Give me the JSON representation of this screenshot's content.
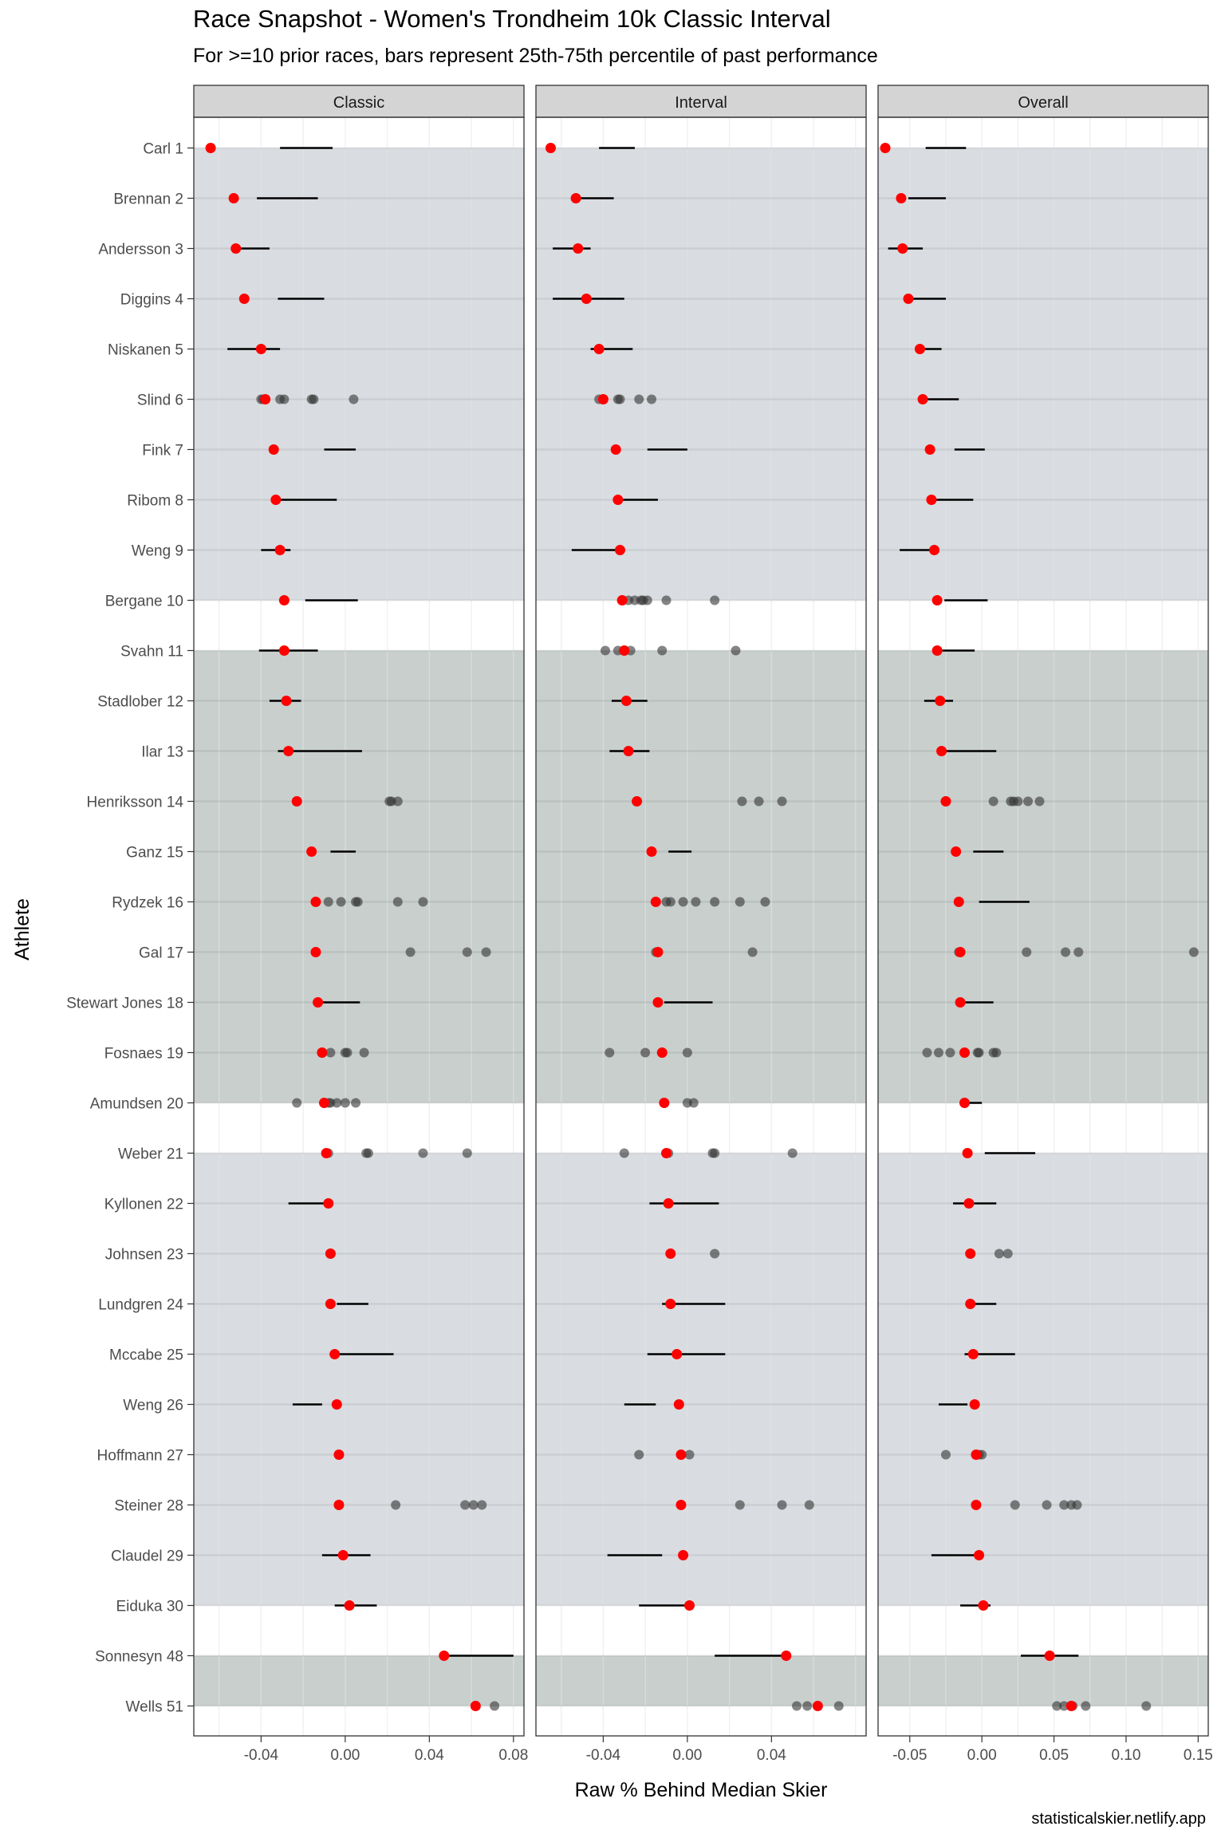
{
  "title": "Race Snapshot -  Women's Trondheim 10k Classic Interval",
  "subtitle": "For >=10 prior races, bars represent 25th-75th percentile of past performance",
  "caption": "statisticalskier.netlify.app",
  "colors": {
    "race_point": "#ff0000",
    "past_point": "#333333",
    "bar": "#000000",
    "band_light": "#d9dce0",
    "band_dark": "#c8cfcd",
    "strip": "#d4d4d4",
    "grid": "#e6e6e6"
  },
  "chart_data": {
    "type": "scatter",
    "xlabel": "Raw % Behind Median Skier",
    "ylabel": "Athlete",
    "athletes": [
      "Carl 1",
      "Brennan 2",
      "Andersson 3",
      "Diggins 4",
      "Niskanen 5",
      "Slind 6",
      "Fink 7",
      "Ribom 8",
      "Weng 9",
      "Bergane 10",
      "Svahn 11",
      "Stadlober 12",
      "Ilar 13",
      "Henriksson 14",
      "Ganz 15",
      "Rydzek 16",
      "Gal 17",
      "Stewart Jones 18",
      "Fosnaes 19",
      "Amundsen 20",
      "Weber 21",
      "Kyllonen 22",
      "Johnsen 23",
      "Lundgren 24",
      "Mccabe 25",
      "Weng 26",
      "Hoffmann 27",
      "Steiner 28",
      "Claudel 29",
      "Eiduka 30",
      "Sonnesyn 48",
      "Wells 51"
    ],
    "bands": [
      {
        "from": 0,
        "to": 9,
        "shade": "light"
      },
      {
        "from": 10,
        "to": 19,
        "shade": "dark"
      },
      {
        "from": 20,
        "to": 29,
        "shade": "light"
      },
      {
        "from": 30,
        "to": 31,
        "shade": "dark"
      }
    ],
    "panels": [
      {
        "name": "Classic",
        "xlim": [
          -0.072,
          0.085
        ],
        "ticks": [
          -0.04,
          0.0,
          0.04,
          0.08
        ],
        "tick_labels": [
          "-0.04",
          "0.00",
          "0.04",
          "0.08"
        ],
        "race": [
          -0.064,
          -0.053,
          -0.052,
          -0.048,
          -0.04,
          -0.038,
          -0.034,
          -0.033,
          -0.031,
          -0.029,
          -0.029,
          -0.028,
          -0.027,
          -0.023,
          -0.016,
          -0.014,
          -0.014,
          -0.013,
          -0.011,
          -0.01,
          -0.009,
          -0.008,
          -0.007,
          -0.007,
          -0.005,
          -0.004,
          -0.003,
          -0.003,
          -0.001,
          0.002,
          0.047,
          0.062
        ],
        "bars": [
          [
            -0.031,
            -0.006
          ],
          [
            -0.042,
            -0.013
          ],
          [
            -0.051,
            -0.036
          ],
          [
            -0.032,
            -0.01
          ],
          [
            -0.056,
            -0.031
          ],
          null,
          [
            -0.01,
            0.005
          ],
          [
            -0.032,
            -0.004
          ],
          [
            -0.04,
            -0.026
          ],
          [
            -0.019,
            0.006
          ],
          [
            -0.041,
            -0.013
          ],
          [
            -0.036,
            -0.021
          ],
          [
            -0.032,
            0.008
          ],
          null,
          [
            -0.007,
            0.005
          ],
          null,
          null,
          [
            -0.013,
            0.007
          ],
          null,
          null,
          null,
          [
            -0.027,
            -0.007
          ],
          null,
          [
            -0.004,
            0.011
          ],
          [
            -0.006,
            0.023
          ],
          [
            -0.025,
            -0.011
          ],
          null,
          null,
          [
            -0.011,
            0.012
          ],
          [
            -0.005,
            0.015
          ],
          [
            0.047,
            0.08
          ],
          null
        ],
        "past": [
          [],
          [],
          [],
          [],
          [],
          [
            -0.04,
            -0.039,
            -0.031,
            -0.029,
            -0.016,
            -0.015,
            0.004
          ],
          [],
          [],
          [],
          [],
          [],
          [],
          [],
          [
            0.021,
            0.022,
            0.025
          ],
          [],
          [
            -0.008,
            -0.002,
            0.005,
            0.006,
            0.025,
            0.037
          ],
          [
            -0.014,
            0.031,
            0.058,
            0.067
          ],
          [],
          [
            -0.007,
            0.0,
            0.001,
            0.009
          ],
          [
            -0.023,
            -0.008,
            -0.007,
            -0.004,
            0.0,
            0.005
          ],
          [
            -0.008,
            0.01,
            0.011,
            0.037,
            0.058
          ],
          [],
          [],
          [],
          [],
          [],
          [],
          [
            0.024,
            0.057,
            0.061,
            0.065
          ],
          [],
          [],
          [],
          [
            0.071
          ]
        ]
      },
      {
        "name": "Interval",
        "xlim": [
          -0.072,
          0.085
        ],
        "ticks": [
          -0.04,
          0.0,
          0.04
        ],
        "tick_labels": [
          "-0.04",
          "0.00",
          "0.04"
        ],
        "race": [
          -0.065,
          -0.053,
          -0.052,
          -0.048,
          -0.042,
          -0.04,
          -0.034,
          -0.033,
          -0.032,
          -0.031,
          -0.03,
          -0.029,
          -0.028,
          -0.024,
          -0.017,
          -0.015,
          -0.014,
          -0.014,
          -0.012,
          -0.011,
          -0.01,
          -0.009,
          -0.008,
          -0.008,
          -0.005,
          -0.004,
          -0.003,
          -0.003,
          -0.002,
          0.001,
          0.047,
          0.062
        ],
        "bars": [
          [
            -0.042,
            -0.025
          ],
          [
            -0.051,
            -0.035
          ],
          [
            -0.064,
            -0.046
          ],
          [
            -0.064,
            -0.03
          ],
          [
            -0.046,
            -0.026
          ],
          null,
          [
            -0.019,
            0.0
          ],
          [
            -0.032,
            -0.014
          ],
          [
            -0.055,
            -0.033
          ],
          null,
          null,
          [
            -0.036,
            -0.019
          ],
          [
            -0.037,
            -0.018
          ],
          null,
          [
            -0.009,
            0.002
          ],
          null,
          null,
          [
            -0.011,
            0.012
          ],
          null,
          null,
          null,
          [
            -0.018,
            0.015
          ],
          null,
          [
            -0.012,
            0.018
          ],
          [
            -0.019,
            0.018
          ],
          [
            -0.03,
            -0.015
          ],
          null,
          null,
          [
            -0.038,
            -0.012
          ],
          [
            -0.023,
            0.001
          ],
          [
            0.013,
            0.047
          ],
          null
        ],
        "past": [
          [],
          [],
          [],
          [],
          [],
          [
            -0.042,
            -0.033,
            -0.032,
            -0.023,
            -0.017
          ],
          [],
          [],
          [],
          [
            -0.031,
            -0.028,
            -0.025,
            -0.022,
            -0.021,
            -0.019,
            -0.01,
            0.013
          ],
          [
            -0.039,
            -0.033,
            -0.027,
            -0.012,
            0.023
          ],
          [],
          [],
          [
            0.026,
            0.034,
            0.045
          ],
          [],
          [
            -0.01,
            -0.008,
            -0.002,
            0.004,
            0.013,
            0.025,
            0.037
          ],
          [
            -0.015,
            0.031
          ],
          [],
          [
            -0.037,
            -0.02,
            -0.012,
            0.0
          ],
          [
            0.0,
            0.003
          ],
          [
            -0.03,
            -0.009,
            0.012,
            0.013,
            0.05
          ],
          [],
          [
            0.013
          ],
          [],
          [],
          [],
          [
            -0.023,
            0.001
          ],
          [
            0.025,
            0.045,
            0.058
          ],
          [],
          [],
          [],
          [
            0.052,
            0.057,
            0.072
          ]
        ]
      },
      {
        "name": "Overall",
        "xlim": [
          -0.072,
          0.157
        ],
        "ticks": [
          -0.05,
          0.0,
          0.05,
          0.1,
          0.15
        ],
        "tick_labels": [
          "-0.05",
          "0.00",
          "0.05",
          "0.10",
          "0.15"
        ],
        "race": [
          -0.067,
          -0.056,
          -0.055,
          -0.051,
          -0.043,
          -0.041,
          -0.036,
          -0.035,
          -0.033,
          -0.031,
          -0.031,
          -0.029,
          -0.028,
          -0.025,
          -0.018,
          -0.016,
          -0.015,
          -0.015,
          -0.012,
          -0.012,
          -0.01,
          -0.009,
          -0.008,
          -0.008,
          -0.006,
          -0.005,
          -0.004,
          -0.004,
          -0.002,
          0.001,
          0.047,
          0.062
        ],
        "bars": [
          [
            -0.039,
            -0.011
          ],
          [
            -0.051,
            -0.025
          ],
          [
            -0.065,
            -0.041
          ],
          [
            -0.053,
            -0.025
          ],
          [
            -0.045,
            -0.028
          ],
          [
            -0.041,
            -0.016
          ],
          [
            -0.019,
            0.002
          ],
          [
            -0.036,
            -0.006
          ],
          [
            -0.057,
            -0.033
          ],
          [
            -0.026,
            0.004
          ],
          [
            -0.031,
            -0.005
          ],
          [
            -0.04,
            -0.02
          ],
          [
            -0.03,
            0.01
          ],
          null,
          [
            -0.006,
            0.015
          ],
          [
            -0.002,
            0.033
          ],
          null,
          [
            -0.015,
            0.008
          ],
          null,
          [
            -0.012,
            0.0
          ],
          [
            0.002,
            0.037
          ],
          [
            -0.02,
            0.01
          ],
          null,
          [
            -0.008,
            0.01
          ],
          [
            -0.012,
            0.023
          ],
          [
            -0.03,
            -0.01
          ],
          null,
          null,
          [
            -0.035,
            -0.001
          ],
          [
            -0.015,
            0.006
          ],
          [
            0.027,
            0.067
          ],
          null
        ],
        "past": [
          [],
          [],
          [],
          [],
          [],
          [],
          [],
          [],
          [],
          [],
          [],
          [],
          [],
          [
            0.008,
            0.02,
            0.022,
            0.025,
            0.032,
            0.04
          ],
          [],
          [],
          [
            -0.016,
            -0.015,
            0.031,
            0.058,
            0.067,
            0.147
          ],
          [],
          [
            -0.038,
            -0.03,
            -0.022,
            -0.012,
            -0.003,
            -0.002,
            0.008,
            0.01
          ],
          [],
          [],
          [],
          [
            0.012,
            0.018
          ],
          [],
          [],
          [],
          [
            -0.025,
            -0.002,
            0.0
          ],
          [
            0.023,
            0.045,
            0.057,
            0.062,
            0.066
          ],
          [],
          [],
          [],
          [
            0.052,
            0.057,
            0.063,
            0.072,
            0.114
          ]
        ]
      }
    ]
  }
}
